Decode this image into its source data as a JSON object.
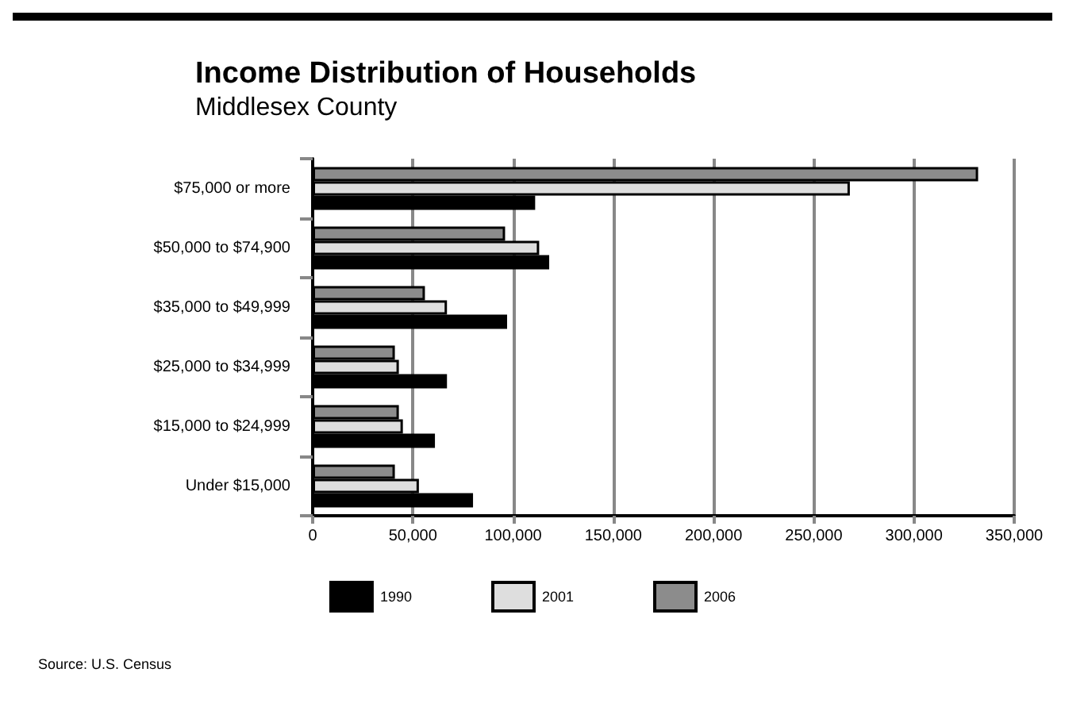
{
  "chart_data": {
    "type": "bar",
    "orientation": "horizontal",
    "title": "Income Distribution of Households",
    "subtitle": "Middlesex County",
    "categories": [
      "$75,000 or more",
      "$50,000 to $74,900",
      "$35,000 to $49,999",
      "$25,000 to $34,999",
      "$15,000 to $24,999",
      "Under $15,000"
    ],
    "series": [
      {
        "name": "1990",
        "color": "#000000",
        "values": [
          111000,
          118000,
          97000,
          67000,
          61000,
          80000
        ]
      },
      {
        "name": "2001",
        "color": "#dedede",
        "values": [
          268000,
          113000,
          67000,
          43000,
          45000,
          53000
        ]
      },
      {
        "name": "2006",
        "color": "#8c8c8c",
        "values": [
          332000,
          96000,
          56000,
          41000,
          43000,
          41000
        ]
      }
    ],
    "xlim": [
      0,
      350000
    ],
    "xticks": [
      0,
      {
        "value": 50000,
        "label": "50,000"
      },
      {
        "value": 100000,
        "label": "100,000"
      },
      {
        "value": 150000,
        "label": "150,000"
      },
      {
        "value": 200000,
        "label": "200,000"
      },
      {
        "value": 250000,
        "label": "250,000"
      },
      {
        "value": 300000,
        "label": "300,000"
      },
      {
        "value": 350000,
        "label": "350,000"
      }
    ],
    "grid": "x",
    "legend": "bottom",
    "annotations": [
      "Source: U.S. Census"
    ]
  }
}
